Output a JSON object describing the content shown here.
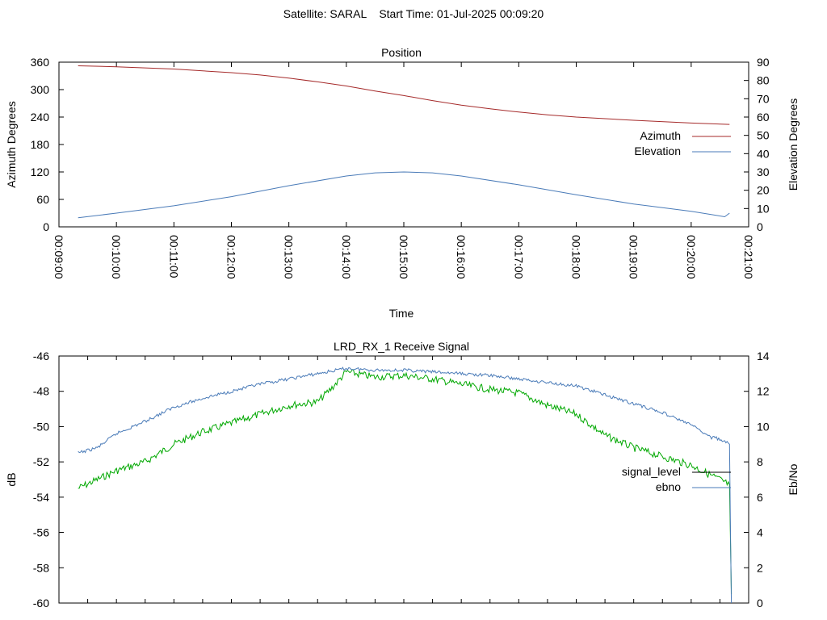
{
  "figure_title": "Satellite: SARAL    Start Time: 01-Jul-2025 00:09:20",
  "chart_data": [
    {
      "type": "line",
      "title": "Position",
      "xlabel": "Time",
      "ylabel": "Azimuth Degrees",
      "y2label": "Elevation Degrees",
      "xlim": [
        "00:09:00",
        "00:21:00"
      ],
      "x_tick_labels": [
        "00:09:00",
        "00:10:00",
        "00:11:00",
        "00:12:00",
        "00:13:00",
        "00:14:00",
        "00:15:00",
        "00:16:00",
        "00:17:00",
        "00:18:00",
        "00:19:00",
        "00:20:00",
        "00:21:00"
      ],
      "ylim": [
        0,
        360
      ],
      "y_ticks": [
        0,
        60,
        120,
        180,
        240,
        300,
        360
      ],
      "y2lim": [
        0,
        90
      ],
      "y2_ticks": [
        0,
        10,
        20,
        30,
        40,
        50,
        60,
        70,
        80,
        90
      ],
      "grid": false,
      "legend_position": "right",
      "series": [
        {
          "name": "Azimuth",
          "axis": "left",
          "color": "#a52a2a",
          "x": [
            "00:09:20",
            "00:10:00",
            "00:11:00",
            "00:12:00",
            "00:12:30",
            "00:13:00",
            "00:13:30",
            "00:14:00",
            "00:14:30",
            "00:15:00",
            "00:15:30",
            "00:16:00",
            "00:16:30",
            "00:17:00",
            "00:17:30",
            "00:18:00",
            "00:19:00",
            "00:20:00",
            "00:20:40"
          ],
          "values": [
            352,
            350,
            345,
            337,
            332,
            325,
            317,
            308,
            297,
            287,
            276,
            266,
            258,
            251,
            245,
            240,
            233,
            227,
            224
          ]
        },
        {
          "name": "Elevation",
          "axis": "right",
          "color": "#4a7bb8",
          "x": [
            "00:09:20",
            "00:10:00",
            "00:11:00",
            "00:12:00",
            "00:13:00",
            "00:14:00",
            "00:14:30",
            "00:15:00",
            "00:15:30",
            "00:16:00",
            "00:17:00",
            "00:18:00",
            "00:19:00",
            "00:20:00",
            "00:20:35",
            "00:20:40"
          ],
          "values": [
            5,
            7.5,
            11.5,
            16.5,
            22.5,
            27.8,
            29.5,
            30,
            29.5,
            27.8,
            23,
            17.5,
            12.5,
            8.5,
            5.5,
            7.5
          ]
        }
      ]
    },
    {
      "type": "line",
      "title": "LRD_RX_1 Receive Signal",
      "ylabel": "dB",
      "y2label": "Eb/No",
      "xlim": [
        "00:09:00",
        "00:21:00"
      ],
      "ylim": [
        -60,
        -46
      ],
      "y_ticks": [
        -60,
        -58,
        -56,
        -54,
        -52,
        -50,
        -48,
        -46
      ],
      "y2lim": [
        0,
        14
      ],
      "y2_ticks": [
        0,
        2,
        4,
        6,
        8,
        10,
        12,
        14
      ],
      "grid": false,
      "legend_position": "right",
      "series": [
        {
          "name": "signal_level",
          "axis": "left",
          "color": "#00a800",
          "x": [
            "00:09:20",
            "00:09:40",
            "00:10:00",
            "00:10:30",
            "00:11:00",
            "00:11:30",
            "00:12:00",
            "00:12:30",
            "00:13:00",
            "00:13:30",
            "00:13:45",
            "00:14:00",
            "00:14:30",
            "00:15:00",
            "00:15:30",
            "00:16:00",
            "00:16:30",
            "00:17:00",
            "00:17:30",
            "00:18:00",
            "00:18:30",
            "00:19:00",
            "00:19:30",
            "00:20:00",
            "00:20:30",
            "00:20:40",
            "00:20:41",
            "00:20:42"
          ],
          "values": [
            -53.5,
            -53,
            -52.5,
            -52,
            -51,
            -50.3,
            -49.8,
            -49.3,
            -48.8,
            -48.6,
            -47.8,
            -46.9,
            -47.2,
            -47.1,
            -47.3,
            -47.6,
            -47.9,
            -48.1,
            -48.8,
            -49.3,
            -50.5,
            -51.2,
            -51.7,
            -52.2,
            -53,
            -53.3,
            -56.5,
            -59.5
          ]
        },
        {
          "name": "ebno",
          "axis": "right",
          "color": "#4a7bb8",
          "x": [
            "00:09:20",
            "00:09:40",
            "00:10:00",
            "00:10:30",
            "00:11:00",
            "00:11:30",
            "00:12:00",
            "00:12:30",
            "00:13:00",
            "00:13:30",
            "00:14:00",
            "00:14:30",
            "00:15:00",
            "00:15:30",
            "00:16:00",
            "00:16:30",
            "00:17:00",
            "00:17:30",
            "00:18:00",
            "00:18:30",
            "00:19:00",
            "00:19:30",
            "00:20:00",
            "00:20:20",
            "00:20:30",
            "00:20:40",
            "00:20:41",
            "00:20:42"
          ],
          "values": [
            8.5,
            8.8,
            9.6,
            10.3,
            11.1,
            11.6,
            12,
            12.4,
            12.7,
            13,
            13.3,
            13.2,
            13.2,
            13.1,
            13,
            12.9,
            12.7,
            12.5,
            12.3,
            11.8,
            11.3,
            10.8,
            10.1,
            9.4,
            9.3,
            9,
            4,
            0
          ]
        }
      ]
    }
  ]
}
